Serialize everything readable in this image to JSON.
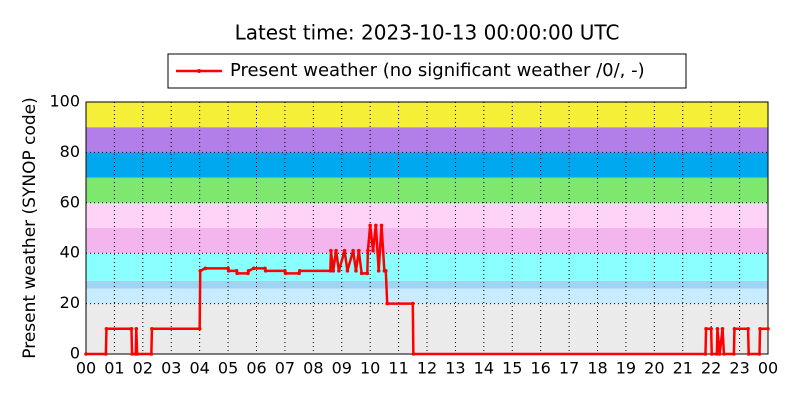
{
  "chart_data": {
    "type": "line",
    "title": "Latest time: 2023-10-13 00:00:00 UTC",
    "y_label": "Present weather (SYNOP code)",
    "xlim": [
      0,
      24
    ],
    "ylim": [
      0,
      100
    ],
    "yticks": [
      0,
      20,
      40,
      60,
      80,
      100
    ],
    "xticks": [
      {
        "value": 0,
        "label": "00"
      },
      {
        "value": 1,
        "label": "01"
      },
      {
        "value": 2,
        "label": "02"
      },
      {
        "value": 3,
        "label": "03"
      },
      {
        "value": 4,
        "label": "04"
      },
      {
        "value": 5,
        "label": "05"
      },
      {
        "value": 6,
        "label": "06"
      },
      {
        "value": 7,
        "label": "07"
      },
      {
        "value": 8,
        "label": "08"
      },
      {
        "value": 9,
        "label": "09"
      },
      {
        "value": 10,
        "label": "10"
      },
      {
        "value": 11,
        "label": "11"
      },
      {
        "value": 12,
        "label": "12"
      },
      {
        "value": 13,
        "label": "13"
      },
      {
        "value": 14,
        "label": "14"
      },
      {
        "value": 15,
        "label": "15"
      },
      {
        "value": 16,
        "label": "16"
      },
      {
        "value": 17,
        "label": "17"
      },
      {
        "value": 18,
        "label": "18"
      },
      {
        "value": 19,
        "label": "19"
      },
      {
        "value": 20,
        "label": "20"
      },
      {
        "value": 21,
        "label": "21"
      },
      {
        "value": 22,
        "label": "22"
      },
      {
        "value": 23,
        "label": "23"
      },
      {
        "value": 24,
        "label": "00"
      }
    ],
    "grid": true,
    "bands": [
      {
        "from": 0,
        "to": 20,
        "color": "#ebebeb"
      },
      {
        "from": 20,
        "to": 26,
        "color": "#c8ecff"
      },
      {
        "from": 26,
        "to": 29,
        "color": "#9fd4f2"
      },
      {
        "from": 29,
        "to": 40,
        "color": "#8affff"
      },
      {
        "from": 40,
        "to": 50,
        "color": "#f4b4ee"
      },
      {
        "from": 50,
        "to": 60,
        "color": "#ffd2f8"
      },
      {
        "from": 60,
        "to": 70,
        "color": "#7ee86e"
      },
      {
        "from": 70,
        "to": 80,
        "color": "#00a8f0"
      },
      {
        "from": 80,
        "to": 90,
        "color": "#b27ee8"
      },
      {
        "from": 90,
        "to": 100,
        "color": "#f5ef38"
      }
    ],
    "legend": "top",
    "series": [
      {
        "name": "Present weather (no significant weather /0/, -)",
        "color": "#ff0000",
        "x": [
          0,
          0.7,
          0.72,
          1.6,
          1.62,
          1.75,
          1.77,
          1.8,
          2.3,
          2.32,
          4.0,
          4.02,
          4.2,
          5.0,
          5.02,
          5.3,
          5.32,
          5.7,
          5.72,
          5.9,
          6.3,
          6.32,
          7.0,
          7.02,
          7.5,
          7.52,
          8.6,
          8.62,
          8.7,
          8.8,
          8.9,
          9.1,
          9.2,
          9.4,
          9.5,
          9.6,
          9.7,
          9.9,
          9.92,
          10.0,
          10.1,
          10.2,
          10.3,
          10.4,
          10.5,
          10.55,
          10.6,
          11.5,
          11.52,
          21.8,
          21.82,
          22.0,
          22.02,
          22.2,
          22.22,
          22.3,
          22.4,
          22.45,
          22.8,
          22.82,
          23.3,
          23.32,
          23.7,
          23.72,
          24
        ],
        "values": [
          0,
          0,
          10,
          10,
          0,
          0,
          10,
          0,
          0,
          10,
          10,
          33,
          34,
          34,
          33,
          33,
          32,
          32,
          33,
          34,
          34,
          33,
          33,
          32,
          32,
          33,
          33,
          41,
          33,
          41,
          33,
          41,
          33,
          41,
          33,
          41,
          32,
          32,
          41,
          51,
          41,
          51,
          33,
          51,
          33,
          33,
          20,
          20,
          0,
          0,
          10,
          10,
          0,
          0,
          10,
          0,
          10,
          0,
          0,
          10,
          10,
          0,
          0,
          10,
          10
        ]
      }
    ]
  }
}
